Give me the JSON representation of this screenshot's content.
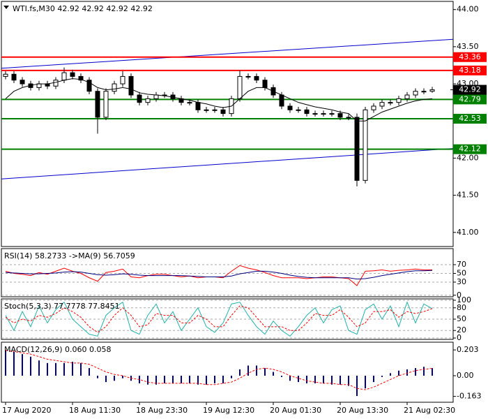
{
  "chart_data": [
    {
      "type": "candlestick",
      "title": "WTI.fs,M30  42.92 42.92 42.92 42.92",
      "categories": [
        "17 Aug 2020",
        null,
        null,
        null,
        null,
        null,
        null,
        null,
        "18 Aug 11:30",
        null,
        null,
        null,
        null,
        null,
        null,
        null,
        "18 Aug 23:30",
        null,
        null,
        null,
        null,
        null,
        null,
        null,
        "19 Aug 12:30",
        null,
        null,
        null,
        null,
        null,
        null,
        null,
        "20 Aug 01:30",
        null,
        null,
        null,
        null,
        null,
        null,
        null,
        "20 Aug 13:30",
        null,
        null,
        null,
        null,
        null,
        null,
        null,
        "21 Aug 02:30",
        null,
        null,
        null
      ],
      "open": [
        43.1,
        43.13,
        43.05,
        43.0,
        42.95,
        43.0,
        42.97,
        43.05,
        43.15,
        43.1,
        43.05,
        42.9,
        42.55,
        42.9,
        43.0,
        43.1,
        42.85,
        42.75,
        42.8,
        42.85,
        42.85,
        42.8,
        42.75,
        42.75,
        42.65,
        42.65,
        42.65,
        42.6,
        42.8,
        43.1,
        43.1,
        43.05,
        42.95,
        42.85,
        42.7,
        42.65,
        42.65,
        42.6,
        42.6,
        42.6,
        42.6,
        42.55,
        42.55,
        41.7,
        42.65,
        42.7,
        42.75,
        42.75,
        42.8,
        42.85,
        42.9,
        42.9
      ],
      "high": [
        43.17,
        43.17,
        43.09,
        43.04,
        43.04,
        43.04,
        43.09,
        43.22,
        43.19,
        43.14,
        43.09,
        42.94,
        42.94,
        43.04,
        43.17,
        43.14,
        42.89,
        42.84,
        42.89,
        42.89,
        42.89,
        42.84,
        42.79,
        42.79,
        42.69,
        42.69,
        42.69,
        42.84,
        43.18,
        43.14,
        43.14,
        43.09,
        42.99,
        42.89,
        42.74,
        42.69,
        42.69,
        42.64,
        42.64,
        42.64,
        42.64,
        42.59,
        42.6,
        42.69,
        42.74,
        42.79,
        42.79,
        42.84,
        42.89,
        42.94,
        42.94,
        42.96
      ],
      "low": [
        43.06,
        43.01,
        42.96,
        42.91,
        42.91,
        42.93,
        42.93,
        43.01,
        43.06,
        43.01,
        42.86,
        42.33,
        42.51,
        42.86,
        42.96,
        42.81,
        42.71,
        42.71,
        42.76,
        42.81,
        42.76,
        42.71,
        42.71,
        42.61,
        42.61,
        42.61,
        42.56,
        42.56,
        42.76,
        43.06,
        43.01,
        42.91,
        42.81,
        42.66,
        42.61,
        42.61,
        42.56,
        42.56,
        42.56,
        42.56,
        42.51,
        42.51,
        41.62,
        41.66,
        42.61,
        42.66,
        42.71,
        42.71,
        42.76,
        42.81,
        42.86,
        42.88
      ],
      "close": [
        43.13,
        43.05,
        43.0,
        42.95,
        43.0,
        42.97,
        43.05,
        43.15,
        43.1,
        43.05,
        42.9,
        42.55,
        42.9,
        43.0,
        43.1,
        42.85,
        42.75,
        42.8,
        42.85,
        42.85,
        42.8,
        42.75,
        42.75,
        42.65,
        42.65,
        42.65,
        42.6,
        42.8,
        43.1,
        43.1,
        43.05,
        42.95,
        42.85,
        42.7,
        42.65,
        42.65,
        42.6,
        42.6,
        42.6,
        42.6,
        42.55,
        42.55,
        41.7,
        42.65,
        42.7,
        42.75,
        42.75,
        42.8,
        42.85,
        42.9,
        42.9,
        42.92
      ],
      "up_color": "#ffffff",
      "down_color": "#000000",
      "series": [
        {
          "color": "#000000",
          "values": [
            42.8,
            42.9,
            42.95,
            42.98,
            43.0,
            43.0,
            43.02,
            43.05,
            43.07,
            43.06,
            43.02,
            42.95,
            42.92,
            42.93,
            42.95,
            42.93,
            42.88,
            42.86,
            42.85,
            42.84,
            42.82,
            42.8,
            42.78,
            42.75,
            42.73,
            42.7,
            42.68,
            42.7,
            42.8,
            42.9,
            42.95,
            42.95,
            42.9,
            42.85,
            42.8,
            42.75,
            42.72,
            42.69,
            42.67,
            42.65,
            42.62,
            42.6,
            42.5,
            42.5,
            42.56,
            42.62,
            42.66,
            42.7,
            42.74,
            42.77,
            42.79,
            42.8
          ]
        }
      ],
      "levels": [
        {
          "value": 43.36,
          "color": "#ff0000"
        },
        {
          "value": 43.18,
          "color": "#ff0000"
        },
        {
          "value": 42.79,
          "color": "#008000"
        },
        {
          "value": 42.53,
          "color": "#008000"
        },
        {
          "value": 42.12,
          "color": "#008000"
        }
      ],
      "trendlines": [
        {
          "values": [
            43.21,
            43.6
          ],
          "color": "#0000cc"
        },
        {
          "values": [
            41.72,
            42.13
          ],
          "color": "#0000cc"
        }
      ],
      "last_price": 42.92,
      "ylim": [
        40.81,
        44.11
      ],
      "yticks": [
        {
          "value": 44,
          "label": "44.00"
        },
        {
          "value": 43.5,
          "label": "43.50"
        },
        {
          "value": 43,
          "label": "43.00"
        },
        {
          "value": 42.5,
          "label": "42.50"
        },
        {
          "value": 42,
          "label": "42.00"
        },
        {
          "value": 41.5,
          "label": "41.50"
        },
        {
          "value": 41,
          "label": "41.00"
        }
      ]
    },
    {
      "type": "line",
      "title": "RSI(14) 58.2733  ->MA(9) 56.7059",
      "grid": true,
      "ylim": [
        -3.6,
        106.8
      ],
      "yticks": [
        70,
        50,
        30,
        0
      ],
      "series": [
        {
          "color": "#ff0000",
          "values": [
            55,
            50,
            48,
            45,
            52,
            48,
            55,
            62,
            55,
            50,
            40,
            32,
            52,
            55,
            60,
            42,
            40,
            45,
            48,
            48,
            45,
            42,
            44,
            40,
            42,
            42,
            40,
            55,
            68,
            62,
            58,
            52,
            45,
            40,
            40,
            40,
            38,
            40,
            42,
            42,
            40,
            38,
            22,
            55,
            56,
            58,
            55,
            57,
            58,
            60,
            58,
            58.27
          ]
        },
        {
          "color": "#000080",
          "values": [
            52,
            51,
            50,
            49,
            49,
            50,
            51,
            53,
            54,
            53,
            50,
            47,
            46,
            47,
            49,
            48,
            46,
            45,
            45,
            45,
            45,
            45,
            44,
            43,
            42,
            42,
            42,
            44,
            49,
            52,
            55,
            55,
            53,
            50,
            46,
            43,
            41,
            40,
            40,
            40,
            40,
            40,
            37,
            38,
            41,
            45,
            48,
            51,
            54,
            56,
            56,
            56.71
          ]
        }
      ]
    },
    {
      "type": "line",
      "title": "Stoch(5,3,3) 77.7778 77.8451",
      "grid": true,
      "ylim": [
        -3.6,
        103.6
      ],
      "yticks": [
        100,
        80,
        50,
        20,
        0
      ],
      "series": [
        {
          "color": "#20b2aa",
          "values": [
            60,
            20,
            70,
            30,
            85,
            40,
            75,
            95,
            50,
            30,
            10,
            5,
            60,
            80,
            95,
            20,
            10,
            60,
            90,
            40,
            70,
            20,
            50,
            80,
            30,
            15,
            40,
            90,
            95,
            60,
            30,
            10,
            45,
            20,
            5,
            30,
            60,
            80,
            40,
            75,
            85,
            20,
            10,
            75,
            90,
            50,
            85,
            30,
            95,
            40,
            90,
            77.78
          ]
        },
        {
          "color": "#ff0000",
          "dashed": true,
          "values": [
            55,
            40,
            50,
            45,
            60,
            55,
            65,
            80,
            70,
            55,
            30,
            15,
            30,
            60,
            80,
            60,
            30,
            35,
            65,
            60,
            60,
            40,
            40,
            60,
            50,
            30,
            30,
            60,
            85,
            80,
            55,
            30,
            30,
            30,
            20,
            20,
            40,
            65,
            60,
            60,
            75,
            55,
            30,
            40,
            70,
            70,
            75,
            55,
            70,
            65,
            70,
            77.85
          ]
        }
      ]
    },
    {
      "type": "bar",
      "title": "MACD(12,26,9) 0.060 0.058",
      "grid": false,
      "ylim": [
        -0.209,
        0.264
      ],
      "yticks": [
        0.203,
        {
          "value": 0,
          "label": "0.00"
        },
        -0.163
      ],
      "series": [
        {
          "type": "bar",
          "color": "#000080",
          "values": [
            0.2,
            0.19,
            0.17,
            0.15,
            0.12,
            0.1,
            0.1,
            0.1,
            0.11,
            0.1,
            0.06,
            -0.02,
            -0.05,
            -0.04,
            -0.02,
            -0.04,
            -0.06,
            -0.07,
            -0.07,
            -0.06,
            -0.06,
            -0.06,
            -0.06,
            -0.07,
            -0.07,
            -0.06,
            -0.06,
            -0.02,
            0.05,
            0.08,
            0.08,
            0.06,
            0.03,
            -0.01,
            -0.04,
            -0.05,
            -0.06,
            -0.06,
            -0.06,
            -0.07,
            -0.07,
            -0.08,
            -0.16,
            -0.1,
            -0.05,
            -0.01,
            0.02,
            0.04,
            0.05,
            0.06,
            0.07,
            0.06
          ]
        },
        {
          "type": "line",
          "color": "#ff0000",
          "dashed": true,
          "values": [
            0.2,
            0.19,
            0.18,
            0.17,
            0.15,
            0.13,
            0.12,
            0.11,
            0.1,
            0.1,
            0.09,
            0.06,
            0.03,
            0.01,
            0,
            -0.02,
            -0.03,
            -0.05,
            -0.06,
            -0.06,
            -0.06,
            -0.06,
            -0.06,
            -0.06,
            -0.07,
            -0.07,
            -0.06,
            -0.05,
            -0.02,
            0.02,
            0.05,
            0.06,
            0.05,
            0.03,
            0,
            -0.02,
            -0.04,
            -0.05,
            -0.06,
            -0.06,
            -0.07,
            -0.07,
            -0.1,
            -0.11,
            -0.09,
            -0.06,
            -0.03,
            0,
            0.02,
            0.04,
            0.05,
            0.058
          ]
        }
      ]
    }
  ]
}
